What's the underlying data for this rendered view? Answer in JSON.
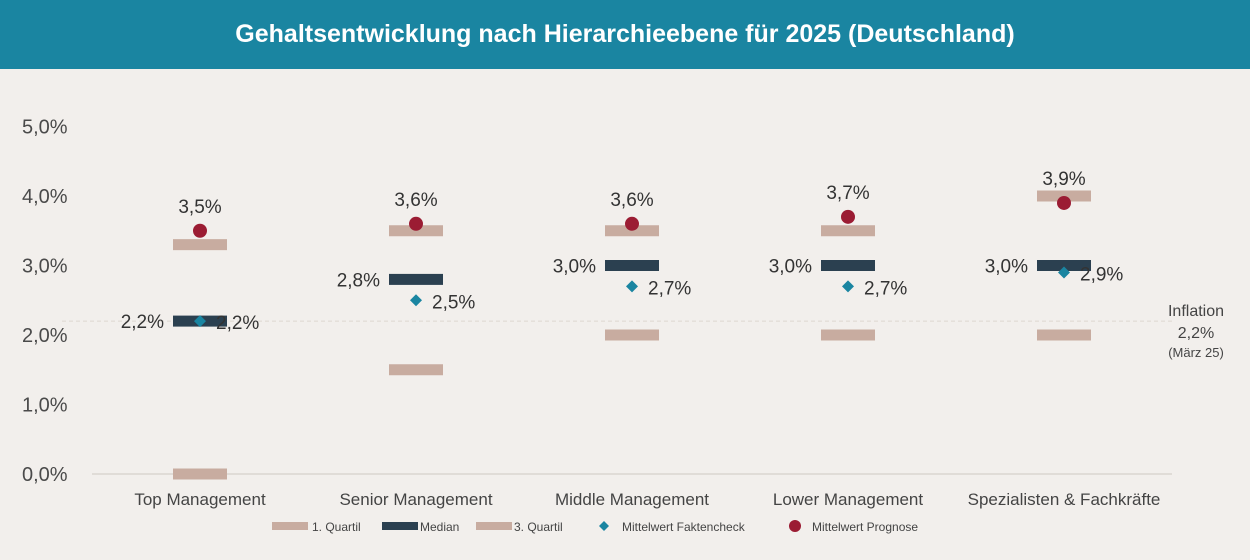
{
  "chart_data": {
    "type": "range-dot",
    "title": "Gehaltsentwicklung nach Hierarchieebene für 2025 (Deutschland)",
    "y_ticks": [
      "0,0%",
      "1,0%",
      "2,0%",
      "3,0%",
      "4,0%",
      "5,0%"
    ],
    "ylim": [
      0,
      5
    ],
    "categories": [
      "Top Management",
      "Senior Management",
      "Middle Management",
      "Lower Management",
      "Spezialisten & Fachkräfte"
    ],
    "series": [
      {
        "name": "1. Quartil",
        "values": [
          0.0,
          1.5,
          2.0,
          2.0,
          2.0
        ],
        "color": "#c8aca0"
      },
      {
        "name": "Median",
        "values": [
          2.2,
          2.8,
          3.0,
          3.0,
          3.0
        ],
        "labels": [
          "2,2%",
          "2,8%",
          "3,0%",
          "3,0%",
          "3,0%"
        ],
        "color": "#2b4050"
      },
      {
        "name": "3. Quartil",
        "values": [
          3.3,
          3.5,
          3.5,
          3.5,
          4.0
        ],
        "color": "#c8aca0"
      },
      {
        "name": "Mittelwert Faktencheck",
        "values": [
          2.2,
          2.5,
          2.7,
          2.7,
          2.9
        ],
        "labels": [
          "2,2%",
          "2,5%",
          "2,7%",
          "2,7%",
          "2,9%"
        ],
        "color": "#1a85a1"
      },
      {
        "name": "Mittelwert Prognose",
        "values": [
          3.5,
          3.6,
          3.6,
          3.7,
          3.9
        ],
        "labels": [
          "3,5%",
          "3,6%",
          "3,6%",
          "3,7%",
          "3,9%"
        ],
        "color": "#9b1c33"
      }
    ],
    "reference_line": {
      "value": 2.2,
      "label_lines": [
        "Inflation",
        "2,2%",
        "(März 25)"
      ]
    },
    "legend_position": "bottom"
  }
}
